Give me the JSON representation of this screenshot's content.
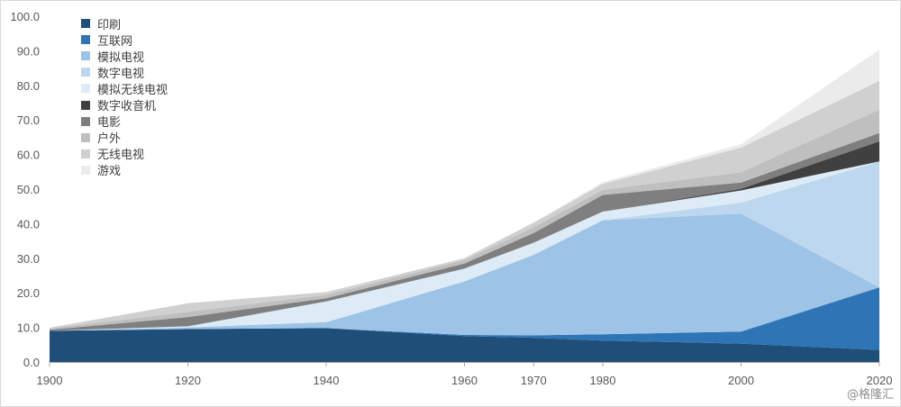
{
  "chart_data": {
    "type": "area",
    "stacked": true,
    "x": [
      "1900",
      "1920",
      "1940",
      "1960",
      "1970",
      "1980",
      "2000",
      "2020"
    ],
    "ylim": [
      0,
      100
    ],
    "yticks": [
      "0.0",
      "10.0",
      "20.0",
      "30.0",
      "40.0",
      "50.0",
      "60.0",
      "70.0",
      "80.0",
      "90.0",
      "100.0"
    ],
    "grid": false,
    "legend_position": "top-left",
    "series": [
      {
        "name": "印刷",
        "color": "#1f4e79",
        "values": [
          9,
          9.5,
          9.8,
          7.5,
          7,
          6.2,
          5.3,
          3.5
        ]
      },
      {
        "name": "互联网",
        "color": "#2e75b6",
        "values": [
          0,
          0,
          0,
          0.3,
          0.7,
          1.8,
          3.5,
          18.1
        ]
      },
      {
        "name": "模拟电视",
        "color": "#9dc3e6",
        "values": [
          0,
          0.5,
          1.7,
          15.5,
          23.3,
          33,
          34.1,
          0
        ]
      },
      {
        "name": "数字电视",
        "color": "#bdd7ee",
        "values": [
          0,
          0,
          0,
          0,
          0,
          0,
          3.2,
          36.4
        ]
      },
      {
        "name": "模拟无线电视",
        "color": "#ddebf7",
        "values": [
          0,
          0.3,
          6,
          3.7,
          3.5,
          2.5,
          3.5,
          0
        ]
      },
      {
        "name": "数字收音机",
        "color": "#404040",
        "values": [
          0,
          0,
          0,
          0,
          0,
          0,
          0.5,
          5.8
        ]
      },
      {
        "name": "电影",
        "color": "#7f7f7f",
        "values": [
          0.3,
          2.7,
          0.9,
          1.5,
          2.8,
          4.8,
          1.8,
          2.4
        ]
      },
      {
        "name": "户外",
        "color": "#bfbfbf",
        "values": [
          0.4,
          1.5,
          1,
          1,
          1.7,
          1.5,
          3,
          6.8
        ]
      },
      {
        "name": "无线电视",
        "color": "#d0d0d0",
        "values": [
          0.2,
          2.5,
          0.8,
          0.5,
          1.3,
          1.7,
          7.1,
          8.3
        ]
      },
      {
        "name": "游戏",
        "color": "#ebebeb",
        "values": [
          0,
          0,
          0,
          0,
          0,
          0.5,
          1,
          9
        ]
      }
    ]
  },
  "watermark": "@格隆汇"
}
